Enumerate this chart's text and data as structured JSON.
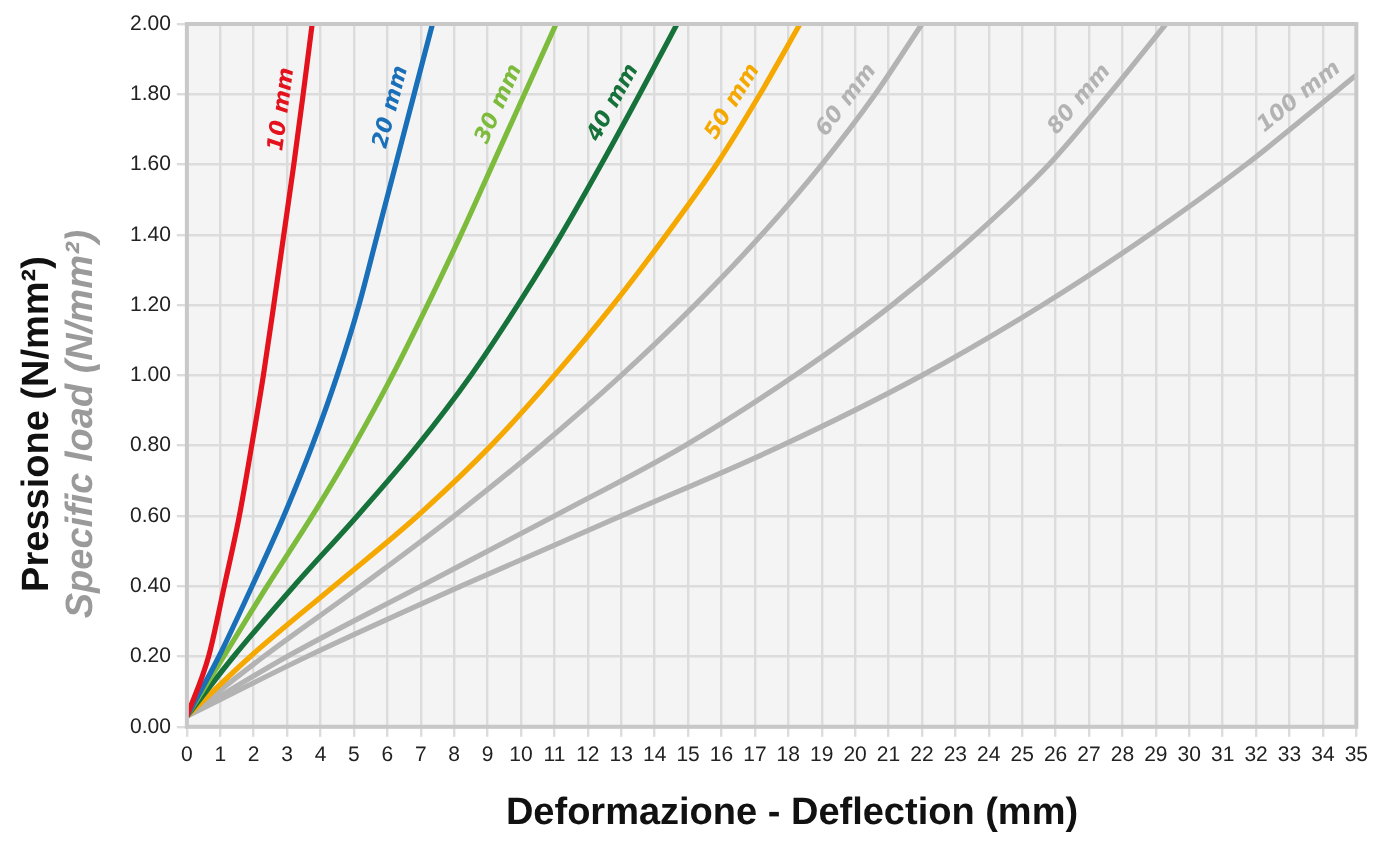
{
  "chart_data": {
    "type": "line",
    "xlabel": "Deformazione - Deflection (mm)",
    "ylabel": "Pressione (N/mm²)\nSpecific load (N/mm²)",
    "xlim": [
      0,
      35
    ],
    "xticks": [
      0,
      1,
      2,
      3,
      4,
      5,
      6,
      7,
      8,
      9,
      10,
      11,
      12,
      13,
      14,
      15,
      16,
      17,
      18,
      19,
      20,
      21,
      22,
      23,
      24,
      25,
      26,
      27,
      28,
      29,
      30,
      31,
      32,
      33,
      34,
      35
    ],
    "ylim": [
      0,
      2
    ],
    "yticks": [
      {
        "value": 0,
        "label": "0.00"
      },
      {
        "value": 0.2,
        "label": "0.20"
      },
      {
        "value": 0.4,
        "label": "0.40"
      },
      {
        "value": 0.6,
        "label": "0.60"
      },
      {
        "value": 0.8,
        "label": "0.80"
      },
      {
        "value": 1,
        "label": "1.00"
      },
      {
        "value": 1.2,
        "label": "1.20"
      },
      {
        "value": 1.4,
        "label": "1.40"
      },
      {
        "value": 1.6,
        "label": "1.60"
      },
      {
        "value": 1.8,
        "label": "1.80"
      },
      {
        "value": 2,
        "label": "2.00"
      }
    ],
    "grid": true,
    "legend": false,
    "marker": "none",
    "line_style": "solid",
    "series": [
      {
        "name": "10 mm",
        "color": "#e3121c",
        "x": [
          0,
          0.65,
          1.12,
          1.57,
          1.94,
          2.29,
          2.6,
          2.9,
          3.2,
          3.48,
          3.75
        ],
        "values": [
          0.03,
          0.2,
          0.4,
          0.6,
          0.8,
          1.0,
          1.2,
          1.4,
          1.6,
          1.8,
          2.0
        ]
      },
      {
        "name": "20 mm",
        "color": "#1a6fb9",
        "x": [
          0,
          0.96,
          1.95,
          2.9,
          3.75,
          4.5,
          5.15,
          5.7,
          6.25,
          6.8,
          7.35
        ],
        "values": [
          0.03,
          0.2,
          0.4,
          0.6,
          0.8,
          1.0,
          1.2,
          1.4,
          1.6,
          1.8,
          2.0
        ]
      },
      {
        "name": "30 mm",
        "color": "#7dbb3c",
        "x": [
          0,
          1.1,
          2.4,
          3.75,
          5.0,
          6.15,
          7.2,
          8.2,
          9.15,
          10.1,
          11.05
        ],
        "values": [
          0.03,
          0.2,
          0.4,
          0.6,
          0.8,
          1.0,
          1.2,
          1.4,
          1.6,
          1.8,
          2.0
        ]
      },
      {
        "name": "40 mm",
        "color": "#16723a",
        "x": [
          0,
          1.4,
          3.2,
          5.1,
          6.9,
          8.5,
          9.9,
          11.2,
          12.4,
          13.55,
          14.67
        ],
        "values": [
          0.03,
          0.2,
          0.4,
          0.6,
          0.8,
          1.0,
          1.2,
          1.4,
          1.6,
          1.8,
          2.0
        ]
      },
      {
        "name": "50 mm",
        "color": "#f5a800",
        "x": [
          0,
          1.9,
          4.4,
          6.9,
          9.1,
          11.0,
          12.75,
          14.35,
          15.85,
          17.15,
          18.35
        ],
        "values": [
          0.03,
          0.2,
          0.4,
          0.6,
          0.8,
          1.0,
          1.2,
          1.4,
          1.6,
          1.8,
          2.0
        ]
      },
      {
        "name": "60 mm",
        "color": "#b3b3b3",
        "x": [
          0,
          2.3,
          5.2,
          8.0,
          10.6,
          13.0,
          15.2,
          17.2,
          19.0,
          20.6,
          22.0
        ],
        "values": [
          0.03,
          0.2,
          0.4,
          0.6,
          0.8,
          1.0,
          1.2,
          1.4,
          1.6,
          1.8,
          2.0
        ]
      },
      {
        "name": "80 mm",
        "color": "#b3b3b3",
        "x": [
          0,
          3.0,
          7.0,
          11.0,
          14.9,
          18.2,
          21.1,
          23.6,
          25.8,
          27.6,
          29.3
        ],
        "values": [
          0.03,
          0.2,
          0.4,
          0.6,
          0.8,
          1.0,
          1.2,
          1.4,
          1.6,
          1.8,
          2.0
        ]
      },
      {
        "name": "100 mm",
        "color": "#b3b3b3",
        "x": [
          0,
          3.6,
          8.2,
          13.0,
          17.8,
          22.0,
          25.6,
          28.8,
          31.7,
          34.3,
          35
        ],
        "values": [
          0.03,
          0.2,
          0.4,
          0.6,
          0.8,
          1.0,
          1.2,
          1.4,
          1.6,
          1.8,
          1.855
        ]
      }
    ]
  }
}
